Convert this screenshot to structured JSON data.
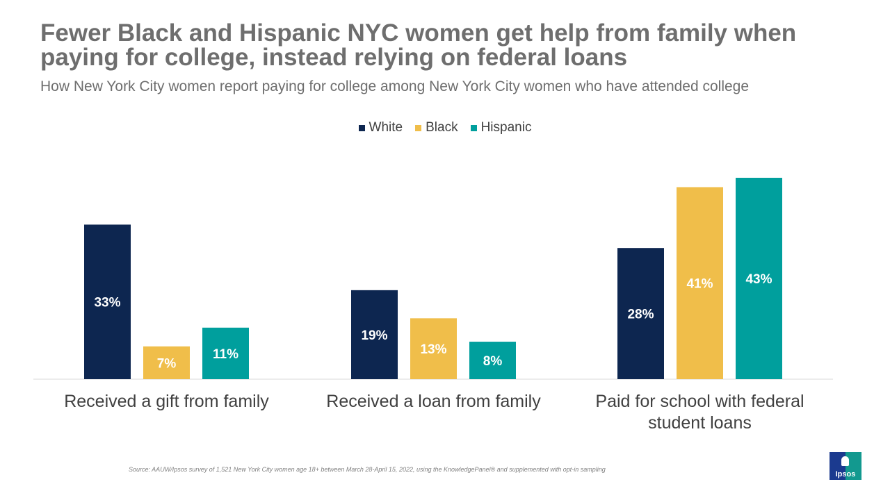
{
  "chart_data": {
    "type": "bar",
    "title": "Fewer Black and Hispanic NYC women get help from family when paying for college, instead relying on federal loans",
    "subtitle": "How New York City women report paying for college among New York City women who have attended college",
    "categories": [
      "Received a gift from family",
      "Received a loan from family",
      "Paid for school with federal student loans"
    ],
    "series": [
      {
        "name": "White",
        "color": "#0d2650",
        "values": [
          33,
          19,
          28
        ],
        "labels": [
          "33%",
          "19%",
          "28%"
        ]
      },
      {
        "name": "Black",
        "color": "#f0be4a",
        "values": [
          7,
          13,
          41
        ],
        "labels": [
          "7%",
          "13%",
          "41%"
        ]
      },
      {
        "name": "Hispanic",
        "color": "#009f9d",
        "values": [
          11,
          8,
          43
        ],
        "labels": [
          "11%",
          "8%",
          "43%"
        ]
      }
    ],
    "ylim": [
      0,
      43
    ],
    "legend_position": "top-center",
    "grid": false
  },
  "source": "Source: AAUW/Ipsos survey of 1,521 New York City women age 18+ between March 28-April 15, 2022, using the KnowledgePanel® and supplemented with opt-in sampling",
  "logo_text": "Ipsos"
}
